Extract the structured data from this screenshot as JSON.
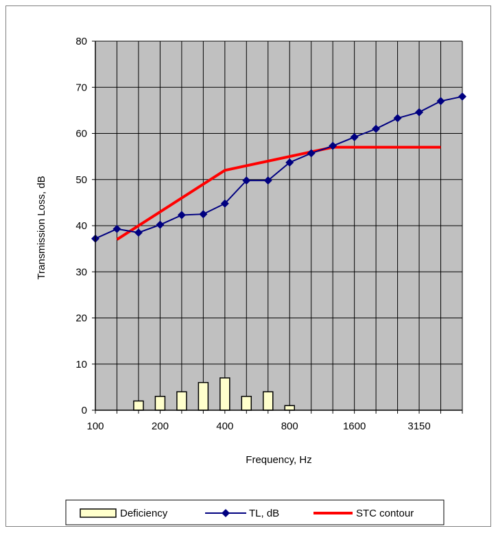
{
  "chart_data": {
    "type": "line",
    "title": "",
    "xlabel": "Frequency, Hz",
    "ylabel": "Transmission Loss, dB",
    "ylim": [
      0,
      80
    ],
    "y_ticks": [
      0,
      10,
      20,
      30,
      40,
      50,
      60,
      70,
      80
    ],
    "grid": true,
    "legend_position": "bottom",
    "x_bands": [
      100,
      125,
      160,
      200,
      250,
      315,
      400,
      500,
      630,
      800,
      1000,
      1250,
      1600,
      2000,
      2500,
      3150,
      4000,
      5000
    ],
    "x_tick_labels": [
      {
        "band": 100,
        "label": "100"
      },
      {
        "band": 200,
        "label": "200"
      },
      {
        "band": 400,
        "label": "400"
      },
      {
        "band": 800,
        "label": "800"
      },
      {
        "band": 1600,
        "label": "1600"
      },
      {
        "band": 3150,
        "label": "3150"
      }
    ],
    "series": [
      {
        "name": "Deficiency",
        "kind": "bar",
        "color": "#ffffcc",
        "edge_color": "#000000",
        "points": [
          {
            "band": 160,
            "value": 2
          },
          {
            "band": 200,
            "value": 3
          },
          {
            "band": 250,
            "value": 4
          },
          {
            "band": 315,
            "value": 6
          },
          {
            "band": 400,
            "value": 7
          },
          {
            "band": 500,
            "value": 3
          },
          {
            "band": 630,
            "value": 4
          },
          {
            "band": 800,
            "value": 1
          }
        ]
      },
      {
        "name": "TL, dB",
        "kind": "line",
        "marker": "diamond",
        "color": "#000080",
        "values": [
          37.2,
          39.3,
          38.5,
          40.2,
          42.3,
          42.5,
          44.8,
          49.8,
          49.8,
          53.7,
          55.7,
          57.3,
          59.2,
          61.0,
          63.3,
          64.6,
          67.0,
          68.0
        ]
      },
      {
        "name": "STC contour",
        "kind": "line",
        "color": "#ff0000",
        "points": [
          {
            "band": 125,
            "value": 37
          },
          {
            "band": 400,
            "value": 52
          },
          {
            "band": 1250,
            "value": 57
          },
          {
            "band": 4000,
            "value": 57
          }
        ]
      }
    ]
  }
}
